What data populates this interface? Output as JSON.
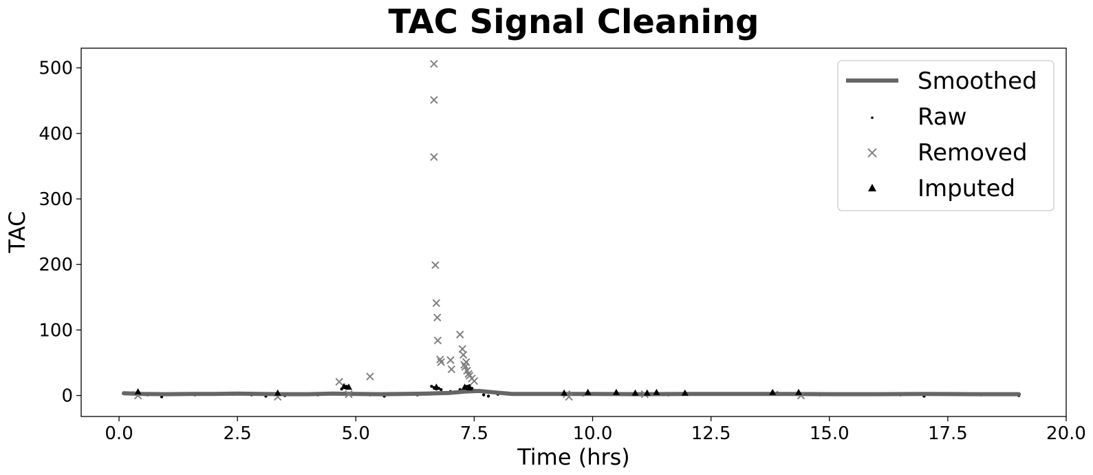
{
  "chart_data": {
    "type": "scatter",
    "title": "TAC Signal Cleaning",
    "xlabel": "Time (hrs)",
    "ylabel": "TAC",
    "xlim": [
      -0.8,
      20.0
    ],
    "ylim": [
      -32,
      530
    ],
    "xticks": [
      0.0,
      2.5,
      5.0,
      7.5,
      10.0,
      12.5,
      15.0,
      17.5,
      20.0
    ],
    "xtick_labels": [
      "0.0",
      "2.5",
      "5.0",
      "7.5",
      "10.0",
      "12.5",
      "15.0",
      "17.5",
      "20.0"
    ],
    "yticks": [
      0,
      100,
      200,
      300,
      400,
      500
    ],
    "ytick_labels": [
      "0",
      "100",
      "200",
      "300",
      "400",
      "500"
    ],
    "grid": false,
    "legend_position": "top-right",
    "colors": {
      "smoothed": "#666666",
      "raw": "#000000",
      "removed": "#808080",
      "imputed": "#000000"
    },
    "series": [
      {
        "name": "Smoothed",
        "style": "line",
        "x": [
          0.1,
          0.5,
          1.0,
          1.5,
          2.0,
          2.5,
          3.0,
          3.5,
          4.0,
          4.5,
          5.0,
          5.5,
          6.0,
          6.5,
          7.0,
          7.3,
          7.6,
          7.9,
          8.3,
          8.8,
          9.5,
          10.0,
          11.0,
          12.0,
          13.0,
          14.0,
          15.0,
          16.0,
          17.0,
          18.0,
          19.0
        ],
        "y": [
          3.5,
          2.5,
          2.0,
          2.5,
          2.5,
          3.0,
          2.5,
          2.0,
          2.0,
          3.0,
          2.5,
          2.0,
          2.5,
          3.0,
          4.0,
          6.0,
          7.0,
          5.0,
          2.5,
          2.5,
          2.5,
          2.5,
          2.0,
          2.5,
          2.5,
          2.5,
          2.0,
          2.0,
          2.5,
          2.0,
          2.0
        ]
      },
      {
        "name": "Raw",
        "style": "dot",
        "x": [
          0.3,
          0.6,
          0.9,
          1.2,
          1.6,
          2.0,
          2.4,
          2.8,
          3.1,
          3.5,
          3.9,
          4.2,
          4.5,
          4.7,
          4.75,
          4.8,
          4.85,
          5.0,
          5.3,
          5.6,
          6.0,
          6.3,
          6.6,
          6.65,
          6.7,
          6.75,
          6.8,
          6.9,
          7.0,
          7.1,
          7.2,
          7.3,
          7.35,
          7.4,
          7.45,
          7.5,
          7.6,
          7.7,
          7.8,
          8.0,
          8.5,
          9.0,
          9.4,
          9.8,
          10.3,
          10.8,
          11.2,
          11.6,
          12.0,
          12.5,
          13.0,
          13.5,
          13.9,
          14.3,
          14.8,
          15.4,
          16.0,
          16.5,
          17.0,
          17.6,
          18.2,
          18.7,
          19.0
        ],
        "y": [
          4,
          1,
          -2,
          2,
          1,
          3,
          2,
          1,
          -1,
          0,
          2,
          1,
          3,
          10,
          13,
          14,
          12,
          2,
          1,
          -1,
          2,
          1,
          14,
          12,
          10,
          11,
          9,
          4,
          6,
          5,
          9,
          12,
          14,
          15,
          11,
          8,
          6,
          1,
          -1,
          2,
          3,
          2,
          4,
          1,
          2,
          3,
          2,
          1,
          3,
          2,
          3,
          2,
          4,
          3,
          1,
          2,
          2,
          1,
          -1,
          2,
          1,
          2,
          0
        ]
      },
      {
        "name": "Removed",
        "style": "x",
        "x": [
          0.4,
          3.35,
          4.65,
          4.85,
          5.3,
          6.65,
          6.65,
          6.65,
          6.68,
          6.7,
          6.72,
          6.73,
          6.78,
          6.8,
          7.0,
          7.02,
          7.2,
          7.25,
          7.27,
          7.29,
          7.31,
          7.33,
          7.35,
          7.38,
          7.4,
          7.45,
          7.5,
          9.5,
          9.45,
          11.1,
          14.4
        ],
        "y": [
          0,
          -2,
          21,
          2,
          29,
          506,
          451,
          364,
          199,
          141,
          119,
          84,
          55,
          51,
          54,
          40,
          93,
          71,
          62,
          47,
          44,
          51,
          38,
          33,
          30,
          26,
          22,
          -2,
          2,
          2,
          0
        ]
      },
      {
        "name": "Imputed",
        "style": "triangle",
        "x": [
          0.4,
          3.35,
          4.75,
          4.85,
          6.7,
          7.3,
          7.4,
          9.4,
          9.9,
          10.5,
          10.9,
          11.15,
          11.35,
          11.95,
          13.8,
          14.35
        ],
        "y": [
          6,
          4,
          14,
          13,
          13,
          13,
          12,
          4,
          5,
          5,
          4,
          4,
          5,
          4,
          5,
          5
        ]
      }
    ]
  }
}
